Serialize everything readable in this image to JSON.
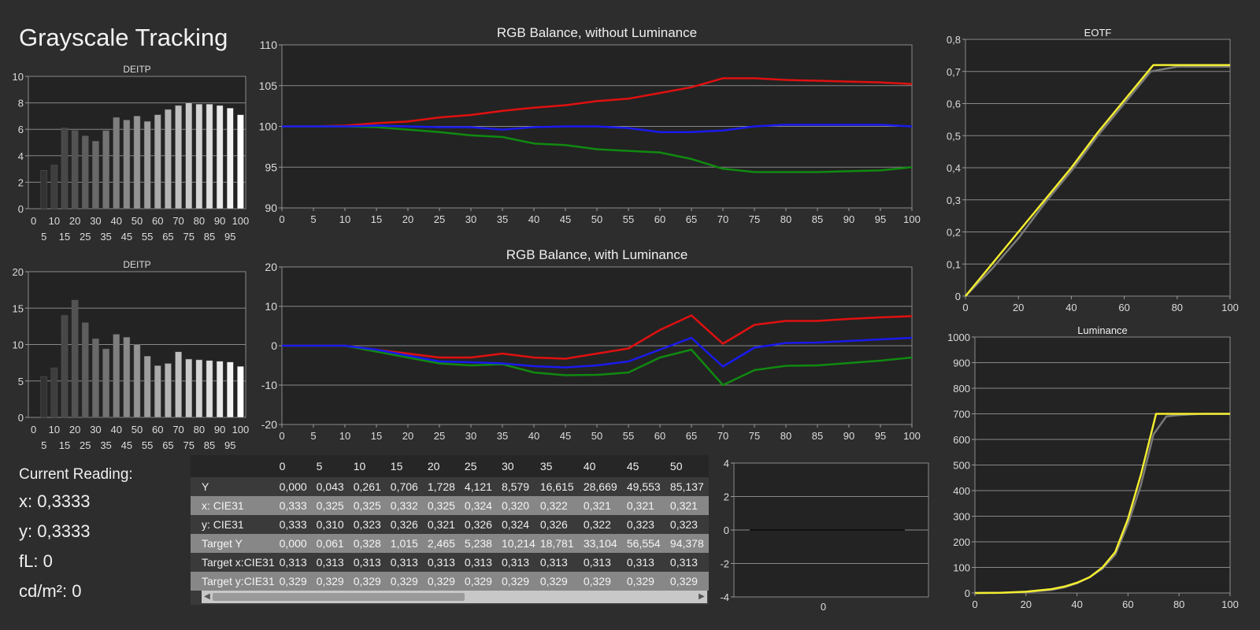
{
  "page": {
    "title": "Grayscale Tracking"
  },
  "current_reading": {
    "header": "Current Reading:",
    "x": "x: 0,3333",
    "y": "y: 0,3333",
    "fl": "fL: 0",
    "cdm2": "cd/m²: 0"
  },
  "colors": {
    "red": "#e01010",
    "green": "#108a10",
    "blue": "#1a1aee",
    "gray": "#7a7a7a",
    "yellow": "#f4ee30"
  },
  "chart_data": [
    {
      "id": "deitp1",
      "type": "bar",
      "title": "DEITP",
      "categories": [
        0,
        5,
        10,
        15,
        20,
        25,
        30,
        35,
        40,
        45,
        50,
        55,
        60,
        65,
        70,
        75,
        80,
        85,
        90,
        95,
        100
      ],
      "values": [
        0,
        2.9,
        3.3,
        6.1,
        5.9,
        5.5,
        5.1,
        5.9,
        6.9,
        6.7,
        7.0,
        6.6,
        7.1,
        7.5,
        7.8,
        8.0,
        7.9,
        7.9,
        7.8,
        7.6,
        7.1
      ],
      "ylim": [
        0,
        10
      ],
      "yticks": [
        "0",
        "2",
        "4",
        "6",
        "8",
        "10"
      ],
      "xticks_top": [
        "0",
        "10",
        "20",
        "30",
        "40",
        "50",
        "60",
        "70",
        "80",
        "90",
        "100"
      ],
      "xticks_bottom": [
        "5",
        "15",
        "25",
        "35",
        "45",
        "55",
        "65",
        "75",
        "85",
        "95"
      ]
    },
    {
      "id": "deitp2",
      "type": "bar",
      "title": "DEITP",
      "categories": [
        0,
        5,
        10,
        15,
        20,
        25,
        30,
        35,
        40,
        45,
        50,
        55,
        60,
        65,
        70,
        75,
        80,
        85,
        90,
        95,
        100
      ],
      "values": [
        0,
        5.6,
        6.8,
        14.0,
        16.1,
        13.0,
        10.8,
        9.4,
        11.4,
        11.0,
        10.0,
        8.4,
        7.1,
        7.4,
        9.0,
        8.0,
        7.9,
        7.8,
        7.7,
        7.6,
        7.0
      ],
      "ylim": [
        0,
        20
      ],
      "yticks": [
        "0",
        "5",
        "10",
        "15",
        "20"
      ],
      "xticks_top": [
        "0",
        "10",
        "20",
        "30",
        "40",
        "50",
        "60",
        "70",
        "80",
        "90",
        "100"
      ],
      "xticks_bottom": [
        "5",
        "15",
        "25",
        "35",
        "45",
        "55",
        "65",
        "75",
        "85",
        "95"
      ]
    },
    {
      "id": "rgb-nolum",
      "type": "line",
      "title": "RGB Balance, without Luminance",
      "x": [
        0,
        5,
        10,
        15,
        20,
        25,
        30,
        35,
        40,
        45,
        50,
        55,
        60,
        65,
        70,
        75,
        80,
        85,
        90,
        95,
        100
      ],
      "ylim": [
        90,
        110
      ],
      "yticks": [
        "90",
        "95",
        "100",
        "105",
        "110"
      ],
      "xticks": [
        "0",
        "5",
        "10",
        "15",
        "20",
        "25",
        "30",
        "35",
        "40",
        "45",
        "50",
        "55",
        "60",
        "65",
        "70",
        "75",
        "80",
        "85",
        "90",
        "95",
        "100"
      ],
      "series": [
        {
          "color": "#e01010",
          "values": [
            100,
            100,
            100.1,
            100.4,
            100.6,
            101.1,
            101.4,
            101.9,
            102.3,
            102.6,
            103.1,
            103.4,
            104.1,
            104.8,
            105.9,
            105.9,
            105.7,
            105.6,
            105.5,
            105.4,
            105.2
          ]
        },
        {
          "color": "#108a10",
          "values": [
            100,
            100,
            100,
            99.9,
            99.6,
            99.3,
            98.9,
            98.7,
            97.9,
            97.7,
            97.2,
            97.0,
            96.8,
            96.0,
            94.8,
            94.4,
            94.4,
            94.4,
            94.5,
            94.6,
            95.0
          ]
        },
        {
          "color": "#1a1aee",
          "values": [
            100,
            100,
            100,
            100.1,
            100,
            99.9,
            99.9,
            99.6,
            99.9,
            100,
            100,
            99.8,
            99.3,
            99.3,
            99.5,
            100,
            100.2,
            100.2,
            100.2,
            100.2,
            100
          ]
        }
      ]
    },
    {
      "id": "rgb-lum",
      "type": "line",
      "title": "RGB Balance, with Luminance",
      "x": [
        0,
        5,
        10,
        15,
        20,
        25,
        30,
        35,
        40,
        45,
        50,
        55,
        60,
        65,
        70,
        75,
        80,
        85,
        90,
        95,
        100
      ],
      "ylim": [
        -20,
        20
      ],
      "yticks": [
        "-20",
        "-10",
        "0",
        "10",
        "20"
      ],
      "xticks": [
        "0",
        "5",
        "10",
        "15",
        "20",
        "25",
        "30",
        "35",
        "40",
        "45",
        "50",
        "55",
        "60",
        "65",
        "70",
        "75",
        "80",
        "85",
        "90",
        "95",
        "100"
      ],
      "series": [
        {
          "color": "#e01010",
          "values": [
            0,
            0,
            0,
            -1,
            -2,
            -3,
            -3,
            -2,
            -3,
            -3.3,
            -2,
            -0.7,
            4,
            7.7,
            0.5,
            5.3,
            6.3,
            6.3,
            6.8,
            7.2,
            7.5
          ]
        },
        {
          "color": "#108a10",
          "values": [
            0,
            0,
            0,
            -1.5,
            -3,
            -4.5,
            -5,
            -4.7,
            -6.8,
            -7.5,
            -7.4,
            -6.8,
            -3,
            -1,
            -10,
            -6.2,
            -5.1,
            -5,
            -4.4,
            -3.8,
            -3
          ]
        },
        {
          "color": "#1a1aee",
          "values": [
            0,
            0,
            0,
            -1,
            -2.5,
            -4,
            -4.2,
            -4.5,
            -5.2,
            -5.5,
            -5,
            -4,
            -1,
            2,
            -5.3,
            -0.5,
            0.7,
            0.8,
            1.2,
            1.6,
            2
          ]
        }
      ]
    },
    {
      "id": "eotf",
      "type": "line",
      "title": "EOTF",
      "ylim": [
        0,
        0.8
      ],
      "xlim": [
        0,
        100
      ],
      "yticks": [
        "0",
        "0,1",
        "0,2",
        "0,3",
        "0,4",
        "0,5",
        "0,6",
        "0,7",
        "0,8"
      ],
      "xticks": [
        "0",
        "20",
        "40",
        "60",
        "80",
        "100"
      ],
      "series": [
        {
          "color": "#7a7a7a",
          "x": [
            0,
            10,
            20,
            30,
            40,
            50,
            60,
            70,
            80,
            100
          ],
          "values": [
            0,
            0.085,
            0.18,
            0.29,
            0.39,
            0.5,
            0.6,
            0.7,
            0.715,
            0.715
          ]
        },
        {
          "color": "#f4ee30",
          "x": [
            0,
            10,
            20,
            30,
            40,
            50,
            60,
            71,
            80,
            100
          ],
          "values": [
            0,
            0.1,
            0.2,
            0.3,
            0.4,
            0.51,
            0.61,
            0.72,
            0.72,
            0.72
          ]
        }
      ]
    },
    {
      "id": "luminance",
      "type": "line",
      "title": "Luminance",
      "ylim": [
        0,
        1000
      ],
      "xlim": [
        0,
        100
      ],
      "yticks": [
        "0",
        "100",
        "200",
        "300",
        "400",
        "500",
        "600",
        "700",
        "800",
        "900",
        "1000"
      ],
      "xticks": [
        "0",
        "20",
        "40",
        "60",
        "80",
        "100"
      ],
      "series": [
        {
          "color": "#7a7a7a",
          "x": [
            0,
            10,
            20,
            30,
            35,
            40,
            45,
            50,
            55,
            60,
            65,
            70,
            75,
            80,
            85,
            90,
            95,
            100
          ],
          "values": [
            0,
            1,
            4,
            12,
            22,
            38,
            62,
            95,
            150,
            270,
            420,
            620,
            690,
            695,
            698,
            700,
            700,
            700
          ]
        },
        {
          "color": "#f4ee30",
          "x": [
            0,
            10,
            20,
            30,
            35,
            40,
            45,
            50,
            55,
            60,
            65,
            70,
            71,
            80,
            90,
            100
          ],
          "values": [
            0,
            1,
            5,
            15,
            25,
            40,
            62,
            100,
            160,
            290,
            460,
            660,
            700,
            700,
            700,
            700
          ]
        }
      ]
    },
    {
      "id": "small",
      "type": "line",
      "ylim": [
        -4,
        4
      ],
      "yticks": [
        "-4",
        "-2",
        "0",
        "2",
        "4"
      ],
      "xticks": [
        "0"
      ],
      "series": [
        {
          "color": "#111111",
          "values": [
            0,
            0
          ]
        }
      ]
    }
  ],
  "table": {
    "columns": [
      "0",
      "5",
      "10",
      "15",
      "20",
      "25",
      "30",
      "35",
      "40",
      "45",
      "50"
    ],
    "rows": [
      {
        "label": "Y",
        "values": [
          "0,000",
          "0,043",
          "0,261",
          "0,706",
          "1,728",
          "4,121",
          "8,579",
          "16,615",
          "28,669",
          "49,553",
          "85,137"
        ]
      },
      {
        "label": "x: CIE31",
        "values": [
          "0,333",
          "0,325",
          "0,325",
          "0,332",
          "0,325",
          "0,324",
          "0,320",
          "0,322",
          "0,321",
          "0,321",
          "0,321"
        ]
      },
      {
        "label": "y: CIE31",
        "values": [
          "0,333",
          "0,310",
          "0,323",
          "0,326",
          "0,321",
          "0,326",
          "0,324",
          "0,326",
          "0,322",
          "0,323",
          "0,323"
        ]
      },
      {
        "label": "Target Y",
        "values": [
          "0,000",
          "0,061",
          "0,328",
          "1,015",
          "2,465",
          "5,238",
          "10,214",
          "18,781",
          "33,104",
          "56,554",
          "94,378"
        ]
      },
      {
        "label": "Target x:CIE31",
        "values": [
          "0,313",
          "0,313",
          "0,313",
          "0,313",
          "0,313",
          "0,313",
          "0,313",
          "0,313",
          "0,313",
          "0,313",
          "0,313"
        ]
      },
      {
        "label": "Target y:CIE31",
        "values": [
          "0,329",
          "0,329",
          "0,329",
          "0,329",
          "0,329",
          "0,329",
          "0,329",
          "0,329",
          "0,329",
          "0,329",
          "0,329"
        ]
      }
    ]
  }
}
